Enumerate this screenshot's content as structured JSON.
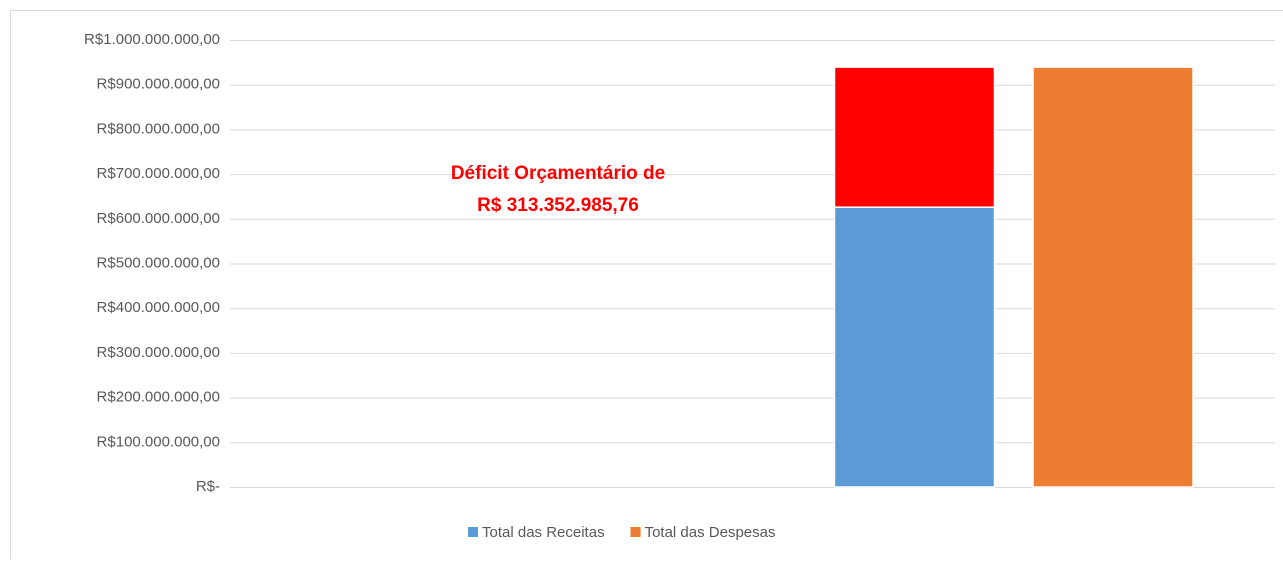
{
  "chart_data": {
    "type": "bar",
    "stacked": true,
    "annotations": [
      "Déficit Orçamentário de",
      "R$ 313.352.985,76"
    ],
    "annotation_color": "#ff0000",
    "series": [
      {
        "name": "Total das Receitas",
        "color": "#5b9bd5",
        "stack": "a",
        "values": [
          626000000
        ]
      },
      {
        "color": "#ff0000",
        "stack": "a",
        "values": [
          313352985.76
        ]
      },
      {
        "name": "Total das Despesas",
        "color": "#ed7d31",
        "stack": "b",
        "values": [
          939352985.76
        ]
      }
    ],
    "ylim": [
      0,
      1000000000
    ],
    "yticks": [
      {
        "value": 0,
        "label": "R$-"
      },
      {
        "value": 100000000,
        "label": "R$100.000.000,00"
      },
      {
        "value": 200000000,
        "label": "R$200.000.000,00"
      },
      {
        "value": 300000000,
        "label": "R$300.000.000,00"
      },
      {
        "value": 400000000,
        "label": "R$400.000.000,00"
      },
      {
        "value": 500000000,
        "label": "R$500.000.000,00"
      },
      {
        "value": 600000000,
        "label": "R$600.000.000,00"
      },
      {
        "value": 700000000,
        "label": "R$700.000.000,00"
      },
      {
        "value": 800000000,
        "label": "R$800.000.000,00"
      },
      {
        "value": 900000000,
        "label": "R$900.000.000,00"
      },
      {
        "value": 1000000000,
        "label": "R$1.000.000.000,00"
      }
    ],
    "grid": true,
    "legend": "bottom"
  }
}
